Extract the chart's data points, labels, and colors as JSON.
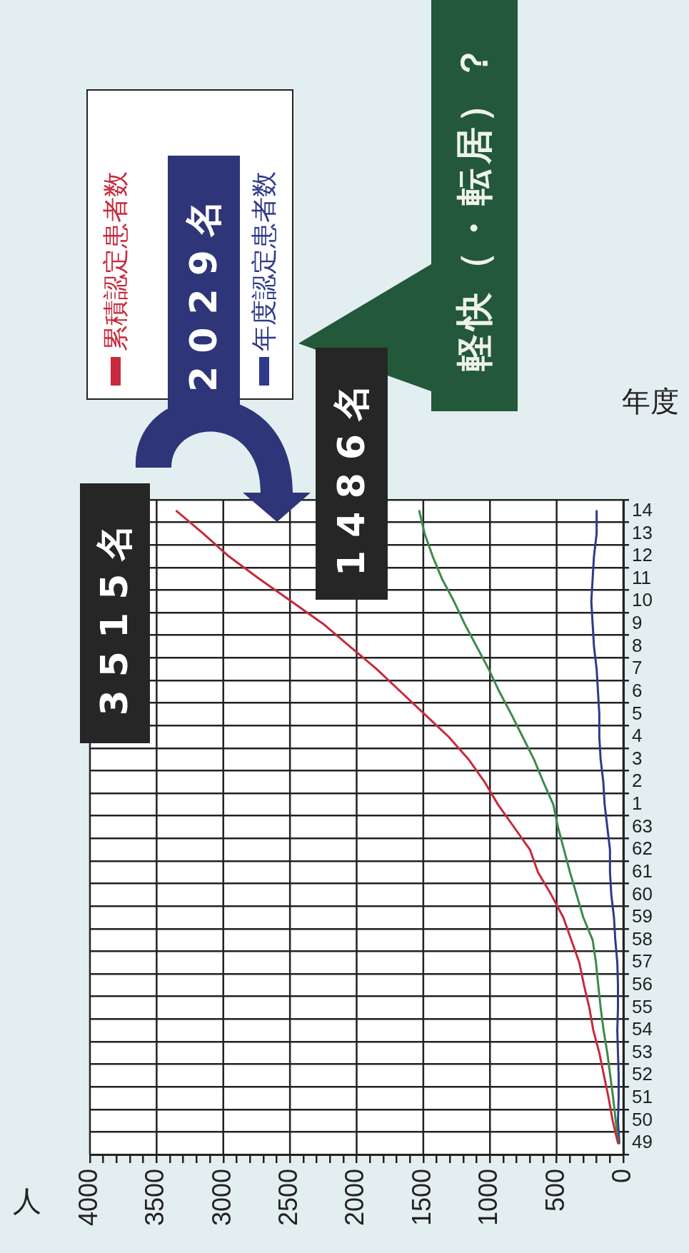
{
  "chart_data": {
    "type": "line",
    "orientation": "horizontal",
    "xlabel": "人",
    "ylabel": "年度",
    "categories": [
      "14",
      "13",
      "12",
      "11",
      "10",
      "9",
      "8",
      "7",
      "6",
      "5",
      "4",
      "3",
      "2",
      "1",
      "63",
      "62",
      "61",
      "60",
      "59",
      "58",
      "57",
      "56",
      "55",
      "54",
      "53",
      "52",
      "51",
      "50",
      "49"
    ],
    "series": [
      {
        "name": "累積認定患者数",
        "color": "#c62a3c",
        "values": [
          3350,
          3150,
          2960,
          2730,
          2490,
          2250,
          2050,
          1850,
          1670,
          1490,
          1310,
          1160,
          1040,
          940,
          820,
          700,
          640,
          540,
          450,
          390,
          330,
          295,
          255,
          225,
          180,
          145,
          110,
          80,
          40
        ]
      },
      {
        "color": "#3d8a4c",
        "values": [
          1530,
          1490,
          1430,
          1360,
          1270,
          1190,
          1100,
          1010,
          930,
          840,
          755,
          670,
          600,
          525,
          490,
          445,
          400,
          350,
          300,
          230,
          205,
          188,
          170,
          148,
          120,
          98,
          76,
          57,
          37
        ]
      },
      {
        "name": "年度認定患者数",
        "color": "#2f3a8a",
        "values": [
          200,
          200,
          220,
          230,
          240,
          230,
          220,
          200,
          190,
          180,
          180,
          170,
          150,
          140,
          120,
          100,
          100,
          90,
          70,
          60,
          45,
          40,
          40,
          45,
          40,
          35,
          35,
          40,
          30
        ]
      }
    ],
    "xlim": [
      4000,
      0
    ],
    "xticks": [
      4000,
      {
        "value": 3900,
        "label": null
      },
      {
        "value": 3800,
        "label": null
      },
      {
        "value": 3700,
        "label": null
      },
      {
        "value": 3600,
        "label": null
      },
      3500,
      {
        "value": 3400,
        "label": null
      },
      {
        "value": 3300,
        "label": null
      },
      {
        "value": 3200,
        "label": null
      },
      {
        "value": 3100,
        "label": null
      },
      3000,
      {
        "value": 2900,
        "label": null
      },
      {
        "value": 2800,
        "label": null
      },
      {
        "value": 2700,
        "label": null
      },
      {
        "value": 2600,
        "label": null
      },
      2500,
      {
        "value": 2400,
        "label": null
      },
      {
        "value": 2300,
        "label": null
      },
      {
        "value": 2200,
        "label": null
      },
      {
        "value": 2100,
        "label": null
      },
      2000,
      {
        "value": 1900,
        "label": null
      },
      {
        "value": 1800,
        "label": null
      },
      {
        "value": 1700,
        "label": null
      },
      {
        "value": 1600,
        "label": null
      },
      1500,
      {
        "value": 1400,
        "label": null
      },
      {
        "value": 1300,
        "label": null
      },
      {
        "value": 1200,
        "label": null
      },
      {
        "value": 1100,
        "label": null
      },
      1000,
      {
        "value": 900,
        "label": null
      },
      {
        "value": 800,
        "label": null
      },
      {
        "value": 700,
        "label": null
      },
      {
        "value": 600,
        "label": null
      },
      500,
      {
        "value": 400,
        "label": null
      },
      {
        "value": 300,
        "label": null
      },
      {
        "value": 200,
        "label": null
      },
      {
        "value": 100,
        "label": null
      },
      0
    ],
    "grid": true,
    "legend": "top left",
    "annotations": [
      "3515名",
      "2029名",
      "1486名",
      "軽快（・転居）？"
    ]
  }
}
